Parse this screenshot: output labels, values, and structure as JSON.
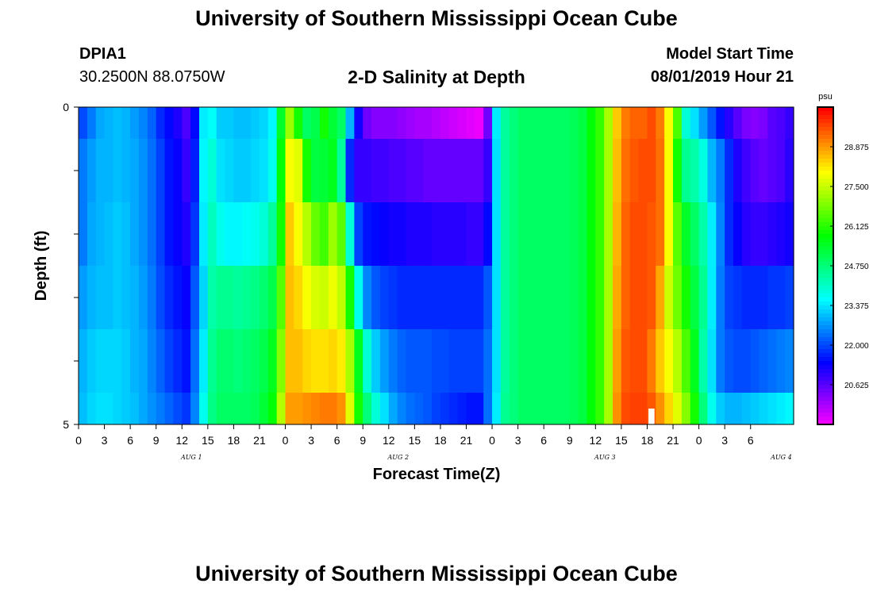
{
  "header": {
    "title": "University of Southern Mississippi Ocean Cube",
    "station": "DPIA1",
    "coords": "30.2500N 88.0750W",
    "subtitle": "2-D Salinity at Depth",
    "start_label": "Model Start Time",
    "start_value": "08/01/2019 Hour 21"
  },
  "footer": {
    "title": "University of Southern Mississippi Ocean Cube"
  },
  "chart_data": {
    "type": "heatmap",
    "title": "2-D Salinity at Depth",
    "xlabel": "Forecast Time(Z)",
    "ylabel": "Depth (ft)",
    "y_ticks": [
      "0",
      "5"
    ],
    "ylim": [
      0,
      5
    ],
    "x_tick_labels": [
      "0",
      "3",
      "6",
      "9",
      "12",
      "15",
      "18",
      "21",
      "0",
      "3",
      "6",
      "9",
      "12",
      "15",
      "18",
      "21",
      "0",
      "3",
      "6",
      "9",
      "12",
      "15",
      "18",
      "21",
      "0",
      "3",
      "6"
    ],
    "day_labels": [
      "AUG 1",
      "AUG 2",
      "AUG 3",
      "AUG 4"
    ],
    "colorbar": {
      "unit": "psu",
      "labels": [
        "28.875",
        "27.500",
        "26.125",
        "24.750",
        "23.375",
        "22.000",
        "20.625"
      ],
      "min": 19.25,
      "max": 30.25
    },
    "columns_per_hour": 1,
    "rows": [
      {
        "depth": "0.0-0.5",
        "values": [
          22.1,
          22.5,
          22.9,
          23.0,
          23.1,
          23.0,
          22.8,
          22.6,
          22.3,
          21.8,
          21.5,
          21.2,
          20.8,
          21.5,
          23.5,
          23.7,
          23.2,
          23.2,
          23.1,
          23.1,
          23.2,
          23.3,
          23.6,
          25.5,
          27.2,
          26.0,
          25.0,
          25.2,
          26.0,
          25.4,
          25.0,
          23.0,
          21.3,
          20.5,
          20.3,
          20.3,
          20.3,
          20.2,
          20.1,
          20.0,
          20.0,
          19.9,
          19.8,
          19.7,
          19.6,
          19.5,
          19.4,
          20.5,
          23.5,
          24.5,
          24.8,
          25.0,
          25.0,
          25.0,
          25.0,
          25.0,
          25.0,
          25.1,
          25.3,
          25.8,
          26.3,
          27.3,
          28.5,
          29.2,
          29.4,
          29.4,
          29.6,
          29.2,
          28.0,
          26.5,
          24.0,
          23.4,
          22.8,
          22.2,
          21.6,
          21.1,
          20.7,
          20.4,
          20.3,
          20.4,
          20.7,
          20.8,
          21.0
        ]
      },
      {
        "depth": "0.5-1.5",
        "values": [
          22.5,
          22.8,
          23.0,
          23.0,
          23.1,
          23.0,
          22.9,
          22.7,
          22.4,
          22.0,
          21.6,
          21.4,
          21.0,
          21.7,
          23.6,
          24.0,
          23.4,
          23.3,
          23.2,
          23.2,
          23.3,
          23.4,
          23.8,
          25.8,
          28.0,
          27.8,
          26.0,
          25.3,
          25.4,
          25.6,
          24.5,
          21.8,
          21.0,
          21.0,
          20.9,
          20.9,
          20.8,
          20.8,
          20.7,
          20.7,
          20.6,
          20.6,
          20.6,
          20.6,
          20.6,
          20.6,
          20.6,
          21.0,
          23.4,
          24.5,
          24.8,
          25.0,
          25.0,
          25.0,
          25.0,
          25.0,
          25.0,
          25.1,
          25.3,
          25.8,
          26.3,
          27.3,
          28.6,
          29.3,
          29.5,
          29.6,
          29.6,
          29.3,
          28.0,
          26.0,
          24.6,
          24.4,
          23.9,
          23.0,
          22.5,
          21.8,
          21.2,
          20.9,
          20.7,
          20.6,
          20.7,
          20.8,
          21.1
        ]
      },
      {
        "depth": "1.5-2.5",
        "values": [
          22.5,
          22.9,
          23.0,
          23.1,
          23.2,
          23.1,
          22.9,
          22.7,
          22.4,
          22.0,
          21.6,
          21.4,
          21.2,
          21.9,
          23.5,
          24.2,
          23.8,
          23.6,
          23.6,
          23.7,
          23.8,
          24.0,
          24.5,
          26.0,
          28.5,
          28.0,
          27.4,
          26.7,
          26.4,
          27.2,
          26.6,
          24.0,
          22.0,
          21.6,
          21.5,
          21.4,
          21.3,
          21.3,
          21.2,
          21.2,
          21.2,
          21.1,
          21.1,
          21.1,
          21.1,
          21.0,
          21.0,
          21.5,
          23.4,
          24.5,
          24.8,
          25.0,
          25.0,
          25.0,
          25.0,
          25.0,
          25.0,
          25.1,
          25.3,
          25.8,
          26.3,
          27.3,
          28.7,
          29.4,
          29.6,
          29.6,
          29.5,
          29.3,
          28.0,
          26.6,
          25.5,
          25.0,
          24.4,
          23.5,
          22.6,
          21.8,
          21.4,
          21.1,
          21.0,
          21.0,
          21.1,
          21.2,
          21.3
        ]
      },
      {
        "depth": "2.5-3.5",
        "values": [
          22.8,
          23.0,
          23.1,
          23.1,
          23.2,
          23.1,
          23.0,
          22.8,
          22.5,
          22.1,
          21.8,
          21.6,
          21.4,
          22.2,
          23.3,
          24.4,
          24.6,
          24.6,
          24.5,
          24.6,
          24.7,
          24.9,
          25.2,
          26.6,
          28.6,
          28.4,
          28.0,
          27.7,
          27.6,
          27.9,
          27.5,
          26.0,
          23.8,
          22.6,
          22.2,
          22.0,
          21.9,
          21.8,
          21.8,
          21.8,
          21.8,
          21.8,
          21.8,
          21.8,
          21.8,
          21.8,
          21.8,
          22.2,
          23.4,
          24.5,
          24.8,
          25.0,
          25.0,
          25.0,
          25.0,
          25.0,
          25.0,
          25.1,
          25.3,
          25.8,
          26.3,
          27.3,
          28.8,
          29.4,
          29.6,
          29.6,
          29.5,
          28.8,
          27.6,
          26.8,
          26.0,
          25.3,
          24.6,
          23.5,
          22.5,
          22.0,
          21.9,
          21.8,
          21.8,
          21.8,
          21.9,
          21.9,
          22.0
        ]
      },
      {
        "depth": "3.5-4.5",
        "values": [
          23.0,
          23.2,
          23.3,
          23.3,
          23.3,
          23.2,
          23.0,
          22.9,
          22.6,
          22.3,
          22.0,
          21.8,
          21.6,
          22.4,
          23.5,
          24.6,
          24.9,
          24.9,
          24.8,
          24.9,
          25.0,
          25.2,
          25.6,
          27.0,
          28.6,
          28.6,
          28.4,
          28.3,
          28.3,
          28.4,
          28.2,
          27.3,
          25.6,
          24.0,
          23.2,
          22.8,
          22.5,
          22.3,
          22.2,
          22.2,
          22.2,
          22.1,
          22.1,
          22.0,
          22.0,
          22.0,
          22.0,
          22.4,
          23.4,
          24.5,
          24.8,
          25.0,
          25.0,
          25.0,
          25.0,
          25.0,
          25.0,
          25.1,
          25.3,
          25.8,
          26.3,
          27.3,
          28.9,
          29.5,
          29.6,
          29.6,
          29.2,
          28.5,
          28.0,
          27.4,
          26.5,
          25.6,
          24.4,
          23.4,
          22.5,
          22.2,
          22.1,
          22.1,
          22.2,
          22.3,
          22.4,
          22.5,
          22.6
        ]
      },
      {
        "depth": "4.5-5.0",
        "values": [
          23.1,
          23.3,
          23.4,
          23.4,
          23.3,
          23.2,
          23.1,
          22.9,
          22.7,
          22.5,
          22.3,
          22.1,
          21.9,
          22.6,
          23.8,
          24.7,
          25.0,
          25.0,
          25.0,
          25.0,
          25.1,
          25.4,
          25.8,
          27.4,
          28.9,
          28.9,
          29.0,
          29.1,
          29.2,
          29.2,
          29.0,
          27.8,
          26.0,
          24.8,
          24.0,
          23.4,
          22.9,
          22.6,
          22.4,
          22.3,
          22.2,
          22.0,
          21.9,
          21.8,
          21.7,
          21.6,
          21.6,
          22.4,
          23.5,
          24.6,
          24.8,
          25.0,
          25.0,
          25.0,
          25.0,
          25.0,
          25.0,
          25.1,
          25.3,
          25.8,
          26.3,
          27.3,
          29.0,
          29.6,
          29.7,
          29.7,
          29.5,
          29.0,
          28.4,
          27.8,
          27.0,
          26.0,
          24.8,
          23.8,
          23.2,
          23.0,
          23.0,
          23.1,
          23.2,
          23.3,
          23.4,
          23.5,
          23.6
        ]
      }
    ],
    "row_depth_bounds": [
      0,
      0.5,
      1.5,
      2.5,
      3.5,
      4.5,
      5.0
    ],
    "missing_cells": [
      {
        "hour": 66,
        "row": 5
      }
    ]
  }
}
